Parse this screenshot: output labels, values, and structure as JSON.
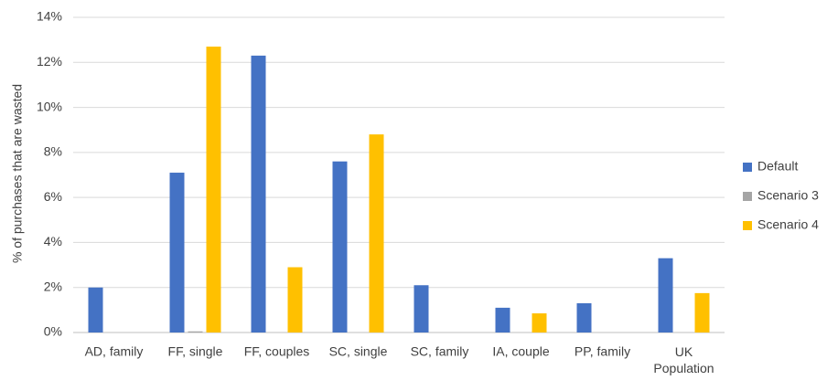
{
  "chart_data": {
    "type": "bar",
    "y_label": "% of purchases that are wasted",
    "categories": [
      "AD, family",
      "FF, single",
      "FF, couples",
      "SC, single",
      "SC, family",
      "IA, couple",
      "PP, family",
      "UK Population"
    ],
    "series": [
      {
        "name": "Default",
        "color": "#4472c4",
        "values": [
          2.0,
          7.1,
          12.3,
          7.6,
          2.1,
          1.1,
          1.3,
          3.3
        ]
      },
      {
        "name": "Scenario 3",
        "color": "#a5a5a5",
        "values": [
          0,
          0.05,
          0,
          0,
          0,
          0,
          0,
          0
        ]
      },
      {
        "name": "Scenario 4",
        "color": "#ffc000",
        "values": [
          0,
          12.7,
          2.9,
          8.8,
          0,
          0.85,
          0,
          1.75
        ]
      }
    ],
    "ylim": [
      0,
      14
    ],
    "yticks": [
      {
        "value": 0,
        "label": "0%"
      },
      {
        "value": 2,
        "label": "2%"
      },
      {
        "value": 4,
        "label": "4%"
      },
      {
        "value": 6,
        "label": "6%"
      },
      {
        "value": 8,
        "label": "8%"
      },
      {
        "value": 10,
        "label": "10%"
      },
      {
        "value": 12,
        "label": "12%"
      },
      {
        "value": 14,
        "label": "14%"
      }
    ],
    "grid": true,
    "legend": "right"
  }
}
